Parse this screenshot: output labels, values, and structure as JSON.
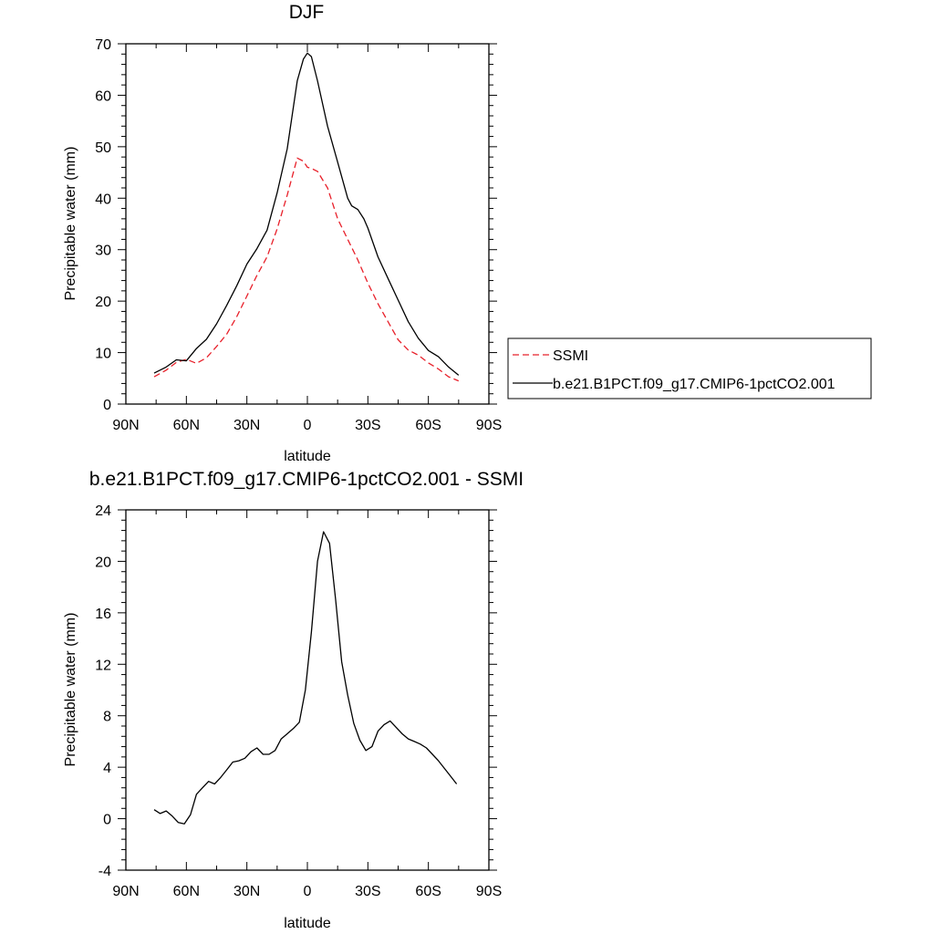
{
  "chart_data": [
    {
      "type": "line",
      "title": "DJF",
      "xlabel": "latitude",
      "ylabel": "Precipitable water (mm)",
      "xlim": [
        90,
        -90
      ],
      "ylim": [
        0,
        70
      ],
      "xticks": [
        90,
        60,
        30,
        0,
        -30,
        -60,
        -90
      ],
      "xtick_labels": [
        "90N",
        "60N",
        "30N",
        "0",
        "30S",
        "60S",
        "90S"
      ],
      "yticks": [
        0,
        10,
        20,
        30,
        40,
        50,
        60,
        70
      ],
      "ytick_labels": [
        "0",
        "10",
        "20",
        "30",
        "40",
        "50",
        "60",
        "70"
      ],
      "legend_position": "right",
      "series": [
        {
          "name": "SSMI",
          "color": "#e8202a",
          "dash": "dashed",
          "x": [
            76,
            70,
            65,
            60,
            55,
            50,
            45,
            40,
            35,
            30,
            25,
            20,
            15,
            10,
            5,
            2,
            0,
            -2,
            -5,
            -10,
            -15,
            -20,
            -25,
            -30,
            -35,
            -40,
            -45,
            -50,
            -55,
            -60,
            -65,
            -70,
            -75
          ],
          "y": [
            5.3,
            6.6,
            8.1,
            8.7,
            7.9,
            9.0,
            11.2,
            13.6,
            17.0,
            21.0,
            25.0,
            28.6,
            34.0,
            40.6,
            47.8,
            47.2,
            46.0,
            45.8,
            45.2,
            42.0,
            36.0,
            32.0,
            28.0,
            23.5,
            19.5,
            16.0,
            12.5,
            10.5,
            9.5,
            8.0,
            6.8,
            5.3,
            4.5
          ]
        },
        {
          "name": "b.e21.B1PCT.f09_g17.CMIP6-1pctCO2.001",
          "color": "#000000",
          "dash": "solid",
          "x": [
            76,
            70,
            65,
            60,
            55,
            50,
            45,
            40,
            35,
            30,
            25,
            20,
            15,
            10,
            5,
            2,
            0,
            -2,
            -5,
            -10,
            -15,
            -20,
            -22,
            -25,
            -28,
            -30,
            -35,
            -40,
            -45,
            -50,
            -55,
            -60,
            -65,
            -70,
            -75
          ],
          "y": [
            6.0,
            7.2,
            8.6,
            8.4,
            10.8,
            12.6,
            15.6,
            19.2,
            23.0,
            27.2,
            30.2,
            33.8,
            41.0,
            49.6,
            62.8,
            67.0,
            68.2,
            67.5,
            62.8,
            54.0,
            47.0,
            40.0,
            38.5,
            37.8,
            36.0,
            34.2,
            28.6,
            24.4,
            20.2,
            16.0,
            12.8,
            10.4,
            9.2,
            7.2,
            5.6
          ]
        }
      ]
    },
    {
      "type": "line",
      "title": "b.e21.B1PCT.f09_g17.CMIP6-1pctCO2.001 - SSMI",
      "xlabel": "latitude",
      "ylabel": "Precipitable water (mm)",
      "xlim": [
        90,
        -90
      ],
      "ylim": [
        -4,
        24
      ],
      "xticks": [
        90,
        60,
        30,
        0,
        -30,
        -60,
        -90
      ],
      "xtick_labels": [
        "90N",
        "60N",
        "30N",
        "0",
        "30S",
        "60S",
        "90S"
      ],
      "yticks": [
        -4,
        0,
        4,
        8,
        12,
        16,
        20,
        24
      ],
      "ytick_labels": [
        "-4",
        "0",
        "4",
        "8",
        "12",
        "16",
        "20",
        "24"
      ],
      "series": [
        {
          "color": "#000000",
          "dash": "solid",
          "x": [
            76,
            73,
            70,
            67,
            64,
            61,
            58,
            55,
            52,
            49,
            46,
            43,
            40,
            37,
            34,
            31,
            28,
            25,
            22,
            19,
            16,
            13,
            10,
            7,
            4,
            1,
            -2,
            -5,
            -8,
            -11,
            -14,
            -17,
            -20,
            -23,
            -26,
            -29,
            -32,
            -35,
            -38,
            -41,
            -44,
            -47,
            -50,
            -53,
            -56,
            -59,
            -62,
            -65,
            -68,
            -71,
            -74
          ],
          "y": [
            0.7,
            0.4,
            0.6,
            0.2,
            -0.3,
            -0.4,
            0.3,
            1.9,
            2.4,
            2.9,
            2.7,
            3.2,
            3.8,
            4.4,
            4.5,
            4.7,
            5.2,
            5.5,
            5.0,
            5.0,
            5.3,
            6.2,
            6.6,
            7.0,
            7.5,
            10.0,
            14.5,
            20.0,
            22.3,
            21.4,
            17.0,
            12.2,
            9.6,
            7.4,
            6.1,
            5.3,
            5.6,
            6.8,
            7.3,
            7.6,
            7.1,
            6.6,
            6.2,
            6.0,
            5.8,
            5.5,
            5.0,
            4.5,
            3.9,
            3.3,
            2.7
          ]
        }
      ]
    }
  ]
}
